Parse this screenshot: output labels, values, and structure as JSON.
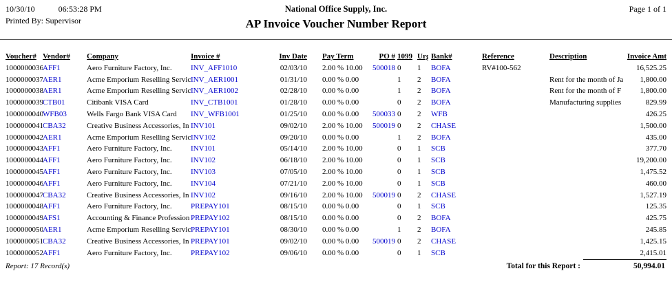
{
  "page": {
    "date": "10/30/10",
    "time": "06:53:28 PM",
    "printed_by": "Printed By: Supervisor",
    "company_name": "National Office Supply, Inc.",
    "report_title": "AP Invoice Voucher Number Report",
    "page_info": "Page 1 of 1"
  },
  "colors": {
    "link_blue": "#0000cc"
  },
  "table": {
    "columns": [
      "Voucher#",
      "Vendor#",
      "Company",
      "Invoice #",
      "Inv Date",
      "Pay Term",
      "PO #",
      "1099",
      "Urg",
      "Bank#",
      "Reference",
      "Description",
      "Invoice Amt"
    ],
    "rows": [
      {
        "voucher": "1000000036",
        "vendor": "AFF1",
        "company": "Aero Furniture Factory, Inc.",
        "invoice": "INV_AFF1010",
        "inv_date": "02/03/10",
        "pay_term": "2.00 % 10.00",
        "po": "500018",
        "f1099": "0",
        "urg": "1",
        "bank": "BOFA",
        "reference": "RV#100-562",
        "description": "",
        "amount": "16,525.25"
      },
      {
        "voucher": "1000000037",
        "vendor": "AER1",
        "company": "Acme Emporium Reselling Servic",
        "invoice": "INV_AER1001",
        "inv_date": "01/31/10",
        "pay_term": "0.00 % 0.00",
        "po": "",
        "f1099": "1",
        "urg": "2",
        "bank": "BOFA",
        "reference": "",
        "description": "Rent for the month of Ja",
        "amount": "1,800.00"
      },
      {
        "voucher": "1000000038",
        "vendor": "AER1",
        "company": "Acme Emporium Reselling Servic",
        "invoice": "INV_AER1002",
        "inv_date": "02/28/10",
        "pay_term": "0.00 % 0.00",
        "po": "",
        "f1099": "1",
        "urg": "2",
        "bank": "BOFA",
        "reference": "",
        "description": "Rent for the month of F",
        "amount": "1,800.00"
      },
      {
        "voucher": "1000000039",
        "vendor": "CTB01",
        "company": "Citibank VISA Card",
        "invoice": "INV_CTB1001",
        "inv_date": "01/28/10",
        "pay_term": "0.00 % 0.00",
        "po": "",
        "f1099": "0",
        "urg": "2",
        "bank": "BOFA",
        "reference": "",
        "description": "Manufacturing supplies",
        "amount": "829.99"
      },
      {
        "voucher": "1000000040",
        "vendor": "WFB03",
        "company": "Wells Fargo Bank VISA Card",
        "invoice": "INV_WFB1001",
        "inv_date": "01/25/10",
        "pay_term": "0.00 % 0.00",
        "po": "500033",
        "f1099": "0",
        "urg": "2",
        "bank": "WFB",
        "reference": "",
        "description": "",
        "amount": "426.25"
      },
      {
        "voucher": "1000000041",
        "vendor": "CBA32",
        "company": "Creative Business Accessories, In",
        "invoice": "INV101",
        "inv_date": "09/02/10",
        "pay_term": "2.00 % 10.00",
        "po": "500019",
        "f1099": "0",
        "urg": "2",
        "bank": "CHASE",
        "reference": "",
        "description": "",
        "amount": "1,500.00"
      },
      {
        "voucher": "1000000042",
        "vendor": "AER1",
        "company": "Acme Emporium Reselling Servic",
        "invoice": "INV102",
        "inv_date": "09/20/10",
        "pay_term": "0.00 % 0.00",
        "po": "",
        "f1099": "1",
        "urg": "2",
        "bank": "BOFA",
        "reference": "",
        "description": "",
        "amount": "435.00"
      },
      {
        "voucher": "1000000043",
        "vendor": "AFF1",
        "company": "Aero Furniture Factory, Inc.",
        "invoice": "INV101",
        "inv_date": "05/14/10",
        "pay_term": "2.00 % 10.00",
        "po": "",
        "f1099": "0",
        "urg": "1",
        "bank": "SCB",
        "reference": "",
        "description": "",
        "amount": "377.70"
      },
      {
        "voucher": "1000000044",
        "vendor": "AFF1",
        "company": "Aero Furniture Factory, Inc.",
        "invoice": "INV102",
        "inv_date": "06/18/10",
        "pay_term": "2.00 % 10.00",
        "po": "",
        "f1099": "0",
        "urg": "1",
        "bank": "SCB",
        "reference": "",
        "description": "",
        "amount": "19,200.00"
      },
      {
        "voucher": "1000000045",
        "vendor": "AFF1",
        "company": "Aero Furniture Factory, Inc.",
        "invoice": "INV103",
        "inv_date": "07/05/10",
        "pay_term": "2.00 % 10.00",
        "po": "",
        "f1099": "0",
        "urg": "1",
        "bank": "SCB",
        "reference": "",
        "description": "",
        "amount": "1,475.52"
      },
      {
        "voucher": "1000000046",
        "vendor": "AFF1",
        "company": "Aero Furniture Factory, Inc.",
        "invoice": "INV104",
        "inv_date": "07/21/10",
        "pay_term": "2.00 % 10.00",
        "po": "",
        "f1099": "0",
        "urg": "1",
        "bank": "SCB",
        "reference": "",
        "description": "",
        "amount": "460.00"
      },
      {
        "voucher": "1000000047",
        "vendor": "CBA32",
        "company": "Creative Business Accessories, In",
        "invoice": "INV102",
        "inv_date": "09/16/10",
        "pay_term": "2.00 % 10.00",
        "po": "500019",
        "f1099": "0",
        "urg": "2",
        "bank": "CHASE",
        "reference": "",
        "description": "",
        "amount": "1,527.19"
      },
      {
        "voucher": "1000000048",
        "vendor": "AFF1",
        "company": "Aero Furniture Factory, Inc.",
        "invoice": "PREPAY101",
        "inv_date": "08/15/10",
        "pay_term": "0.00 % 0.00",
        "po": "",
        "f1099": "0",
        "urg": "1",
        "bank": "SCB",
        "reference": "",
        "description": "",
        "amount": "125.35"
      },
      {
        "voucher": "1000000049",
        "vendor": "AFS1",
        "company": "Accounting & Finance Profession",
        "invoice": "PREPAY102",
        "inv_date": "08/15/10",
        "pay_term": "0.00 % 0.00",
        "po": "",
        "f1099": "0",
        "urg": "2",
        "bank": "BOFA",
        "reference": "",
        "description": "",
        "amount": "425.75"
      },
      {
        "voucher": "1000000050",
        "vendor": "AER1",
        "company": "Acme Emporium Reselling Servic",
        "invoice": "PREPAY101",
        "inv_date": "08/30/10",
        "pay_term": "0.00 % 0.00",
        "po": "",
        "f1099": "1",
        "urg": "2",
        "bank": "BOFA",
        "reference": "",
        "description": "",
        "amount": "245.85"
      },
      {
        "voucher": "1000000051",
        "vendor": "CBA32",
        "company": "Creative Business Accessories, In",
        "invoice": "PREPAY101",
        "inv_date": "09/02/10",
        "pay_term": "0.00 % 0.00",
        "po": "500019",
        "f1099": "0",
        "urg": "2",
        "bank": "CHASE",
        "reference": "",
        "description": "",
        "amount": "1,425.15"
      },
      {
        "voucher": "1000000052",
        "vendor": "AFF1",
        "company": "Aero Furniture Factory, Inc.",
        "invoice": "PREPAY102",
        "inv_date": "09/06/10",
        "pay_term": "0.00 % 0.00",
        "po": "",
        "f1099": "0",
        "urg": "1",
        "bank": "SCB",
        "reference": "",
        "description": "",
        "amount": "2,415.01"
      }
    ]
  },
  "footer": {
    "record_count": "Report: 17 Record(s)",
    "total_label": "Total for this Report :",
    "total_amount": "50,994.01"
  }
}
